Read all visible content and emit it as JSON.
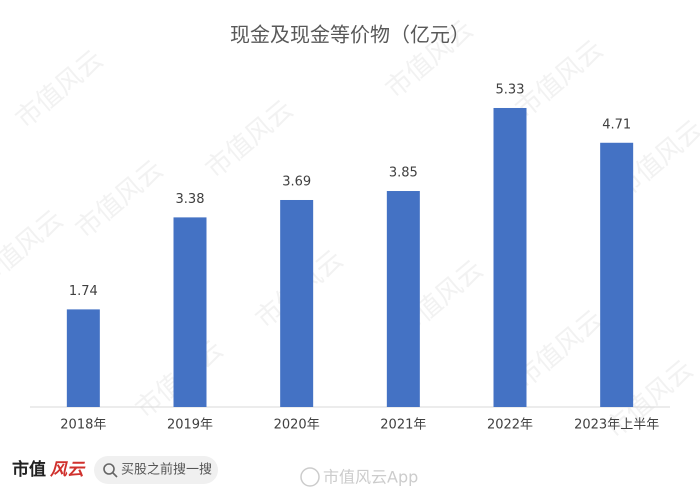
{
  "chart_data": {
    "type": "bar",
    "title": "现金及现金等价物（亿元）",
    "categories": [
      "2018年",
      "2019年",
      "2020年",
      "2021年",
      "2022年",
      "2023年上半年"
    ],
    "values": [
      1.74,
      3.38,
      3.69,
      3.85,
      5.33,
      4.71
    ],
    "color": "#4472c4",
    "ylim": [
      0,
      6
    ]
  },
  "watermark": "市值风云",
  "logo": {
    "left": "市值",
    "right": "风云"
  },
  "search": "买股之前搜一搜",
  "footer_mark": "市值风云App"
}
